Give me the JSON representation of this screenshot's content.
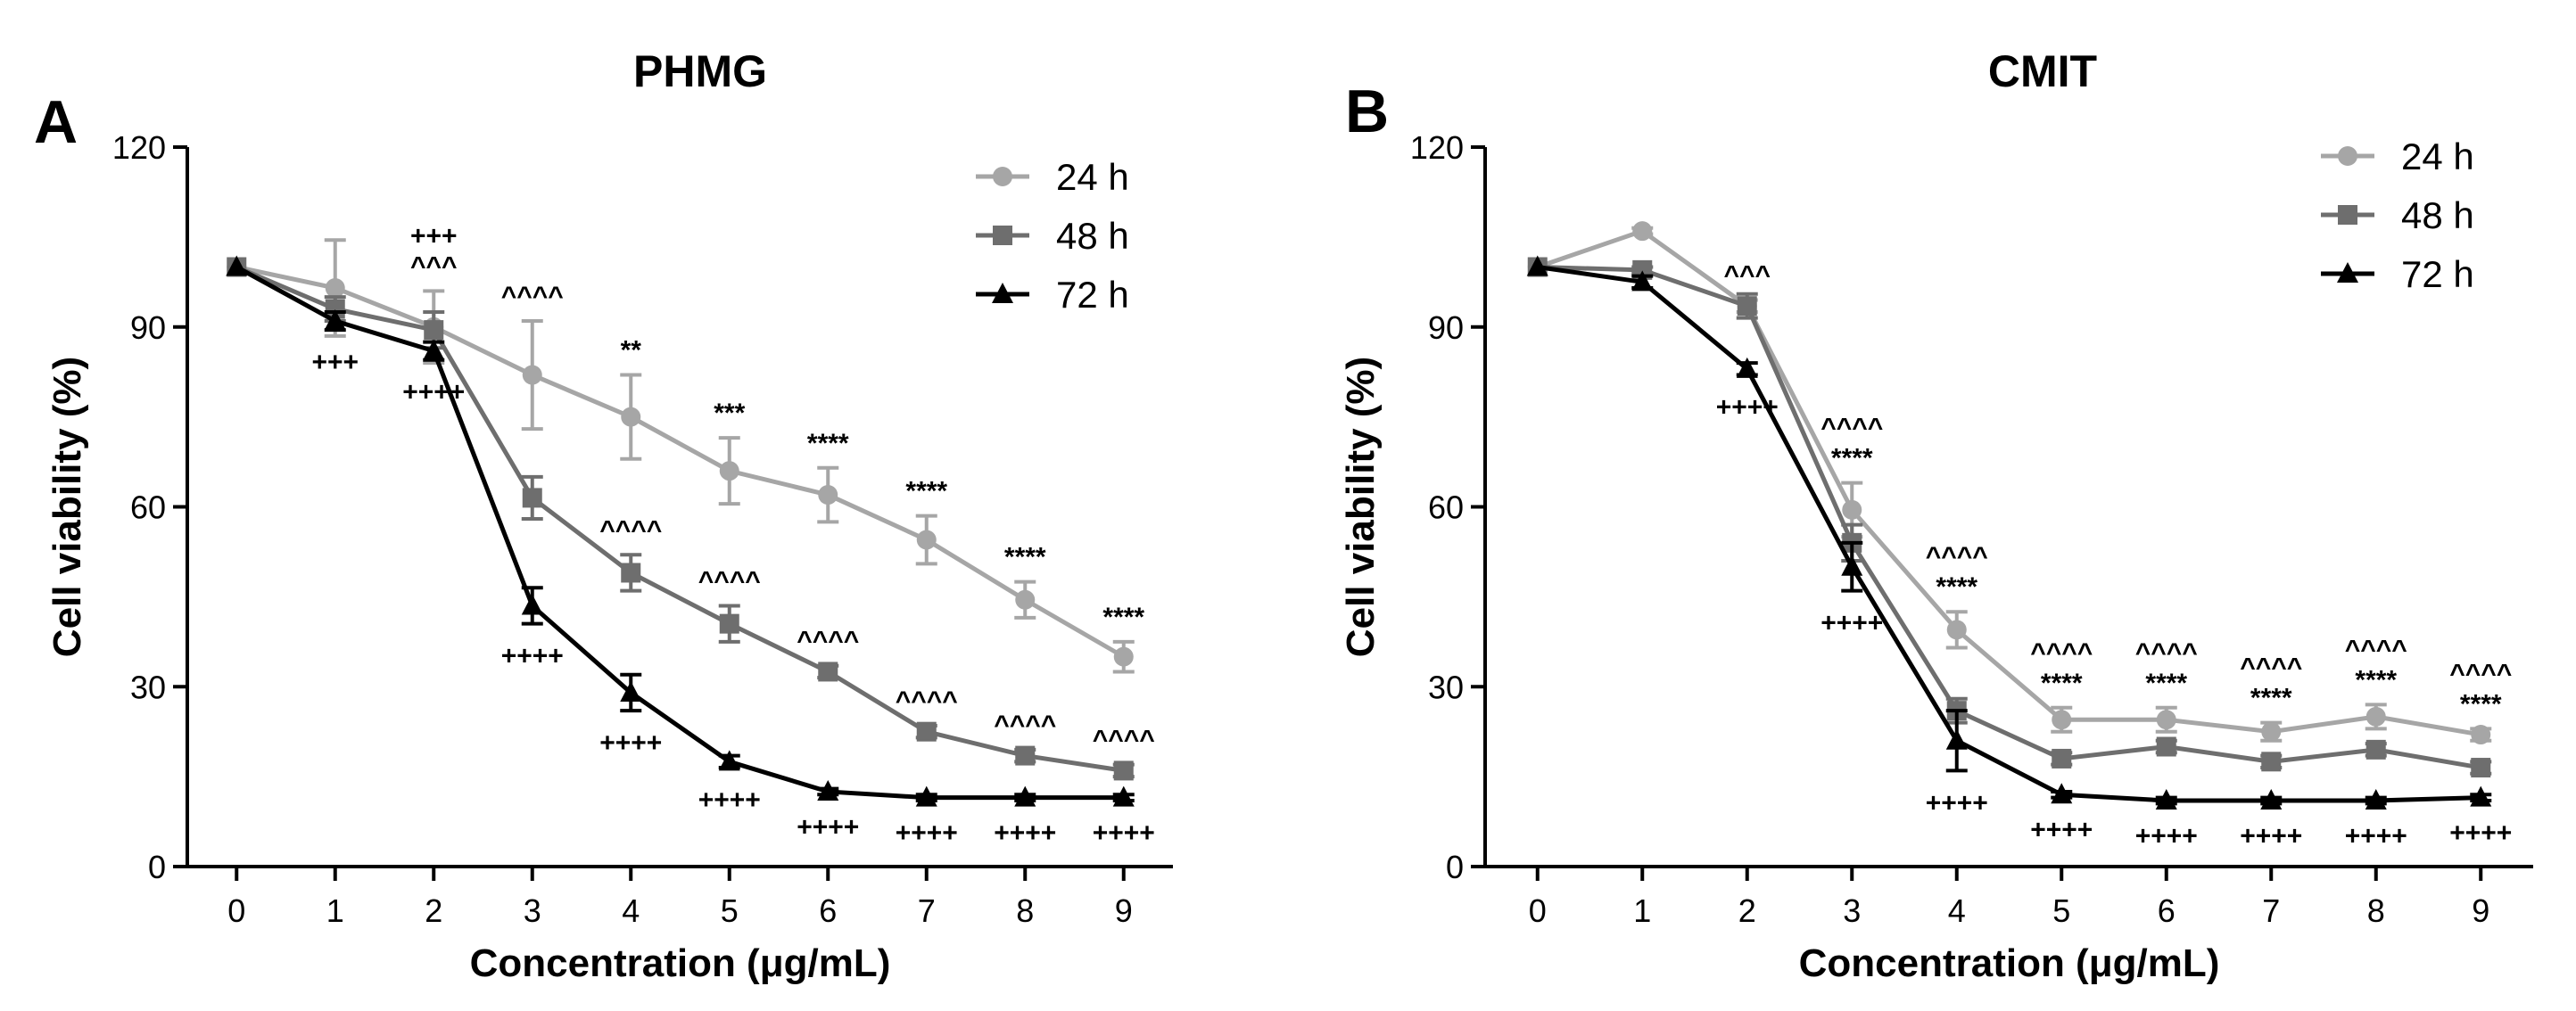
{
  "chart_data": [
    {
      "panel": "A",
      "title": "PHMG",
      "type": "line",
      "xlabel": "Concentration (μg/mL)",
      "ylabel": "Cell viability (%)",
      "ylim": [
        0,
        120
      ],
      "yticks": [
        0,
        30,
        60,
        90,
        120
      ],
      "x": [
        0,
        1,
        2,
        3,
        4,
        5,
        6,
        7,
        8,
        9
      ],
      "legend_position": "top-right",
      "series": [
        {
          "name": "24 h",
          "color": "#a6a6a6",
          "marker": "circle",
          "values": [
            100,
            96.5,
            90,
            82,
            75,
            66,
            62,
            54.5,
            44.5,
            35
          ],
          "errors": [
            0,
            8,
            6,
            9,
            7,
            5.5,
            4.5,
            4,
            3,
            2.5
          ]
        },
        {
          "name": "48 h",
          "color": "#6e6e6e",
          "marker": "square",
          "values": [
            100,
            93,
            89.5,
            61.5,
            49,
            40.5,
            32.5,
            22.5,
            18.5,
            16
          ],
          "errors": [
            0,
            2,
            3,
            3.5,
            3,
            3,
            1,
            1,
            1,
            1
          ]
        },
        {
          "name": "72 h",
          "color": "#000000",
          "marker": "triangle",
          "values": [
            100,
            91,
            86,
            43.5,
            29,
            17.5,
            12.5,
            11.5,
            11.5,
            11.5
          ],
          "errors": [
            0,
            1.5,
            1.5,
            3,
            3,
            1,
            0.5,
            0.5,
            0.5,
            0.5
          ]
        }
      ],
      "annotations": [
        {
          "x": 1,
          "lines_below": [
            "+++"
          ]
        },
        {
          "x": 2,
          "lines_above": [
            "+++",
            "^^^"
          ],
          "lines_below": [
            "++++"
          ]
        },
        {
          "x": 3,
          "lines_above": [
            "^^^^"
          ],
          "lines_below": [
            "++++"
          ]
        },
        {
          "x": 4,
          "lines_above": [
            "**"
          ],
          "lines_above_48": [
            "^^^^"
          ],
          "lines_below": [
            "++++"
          ]
        },
        {
          "x": 5,
          "lines_above": [
            "***"
          ],
          "lines_above_48": [
            "^^^^"
          ],
          "lines_below": [
            "++++"
          ]
        },
        {
          "x": 6,
          "lines_above": [
            "****"
          ],
          "lines_above_48": [
            "^^^^"
          ],
          "lines_below": [
            "++++"
          ]
        },
        {
          "x": 7,
          "lines_above": [
            "****"
          ],
          "lines_above_48": [
            "^^^^"
          ],
          "lines_below": [
            "++++"
          ]
        },
        {
          "x": 8,
          "lines_above": [
            "****"
          ],
          "lines_above_48": [
            "^^^^"
          ],
          "lines_below": [
            "++++"
          ]
        },
        {
          "x": 9,
          "lines_above": [
            "****"
          ],
          "lines_above_48": [
            "^^^^"
          ],
          "lines_below": [
            "++++"
          ]
        }
      ]
    },
    {
      "panel": "B",
      "title": "CMIT",
      "type": "line",
      "xlabel": "Concentration (μg/mL)",
      "ylabel": "Cell viability (%)",
      "ylim": [
        0,
        120
      ],
      "yticks": [
        0,
        30,
        60,
        90,
        120
      ],
      "x": [
        0,
        1,
        2,
        3,
        4,
        5,
        6,
        7,
        8,
        9
      ],
      "legend_position": "top-right",
      "series": [
        {
          "name": "24 h",
          "color": "#a6a6a6",
          "marker": "circle",
          "values": [
            100,
            106,
            93.5,
            59.5,
            39.5,
            24.5,
            24.5,
            22.5,
            25,
            22
          ],
          "errors": [
            0,
            0.5,
            1,
            4.5,
            3,
            2,
            2,
            1.5,
            2,
            1
          ]
        },
        {
          "name": "48 h",
          "color": "#6e6e6e",
          "marker": "square",
          "values": [
            100,
            99.5,
            93.5,
            54,
            26,
            18,
            20,
            17.5,
            19.5,
            16.5
          ],
          "errors": [
            0,
            0.5,
            2,
            3,
            2,
            1,
            1,
            1,
            1,
            1
          ]
        },
        {
          "name": "72 h",
          "color": "#000000",
          "marker": "triangle",
          "values": [
            100,
            97.5,
            83,
            50,
            21,
            12,
            11,
            11,
            11,
            11.5
          ],
          "errors": [
            0,
            1,
            1,
            4,
            5,
            0.5,
            0.5,
            0.5,
            0.5,
            0.5
          ]
        }
      ],
      "annotations": [
        {
          "x": 2,
          "lines_above": [
            "^^^"
          ],
          "lines_below": [
            "++++"
          ]
        },
        {
          "x": 3,
          "lines_above": [
            "^^^^",
            "****"
          ],
          "lines_below": [
            "++++"
          ]
        },
        {
          "x": 4,
          "lines_above": [
            "^^^^",
            "****"
          ],
          "lines_below": [
            "++++"
          ]
        },
        {
          "x": 5,
          "lines_above": [
            "^^^^",
            "****"
          ],
          "lines_below": [
            "++++"
          ]
        },
        {
          "x": 6,
          "lines_above": [
            "^^^^",
            "****"
          ],
          "lines_below": [
            "++++"
          ]
        },
        {
          "x": 7,
          "lines_above": [
            "^^^^",
            "****"
          ],
          "lines_below": [
            "++++"
          ]
        },
        {
          "x": 8,
          "lines_above": [
            "^^^^",
            "****"
          ],
          "lines_below": [
            "++++"
          ]
        },
        {
          "x": 9,
          "lines_above": [
            "^^^^",
            "****"
          ],
          "lines_below": [
            "++++"
          ]
        }
      ]
    }
  ]
}
